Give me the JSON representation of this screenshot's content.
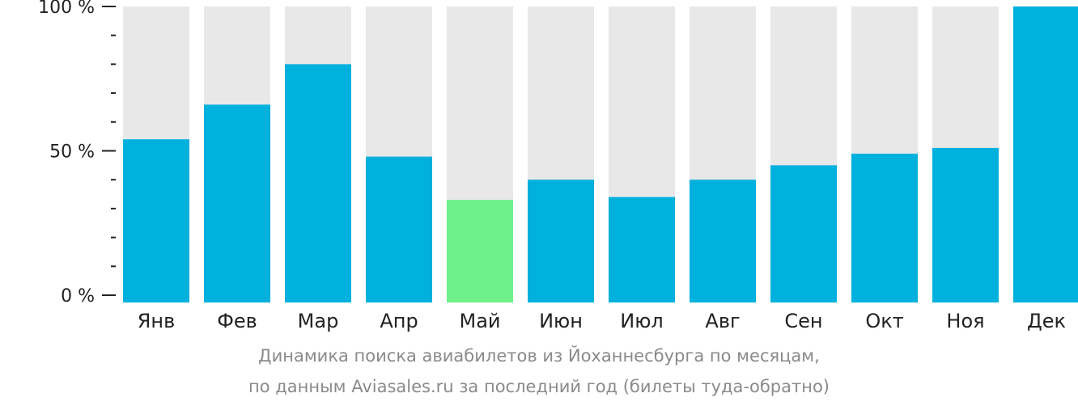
{
  "chart_data": {
    "type": "bar",
    "categories": [
      "Янв",
      "Фев",
      "Мар",
      "Апр",
      "Май",
      "Июн",
      "Июл",
      "Авг",
      "Сен",
      "Окт",
      "Ноя",
      "Дек"
    ],
    "values": [
      54,
      66,
      80,
      48,
      33,
      40,
      34,
      40,
      45,
      49,
      51,
      100
    ],
    "max_value": 100,
    "ylim": [
      0,
      100
    ],
    "yticks": [
      {
        "value": 0,
        "label": "0 %"
      },
      {
        "value": 50,
        "label": "50 %"
      },
      {
        "value": 100,
        "label": "100 %"
      }
    ],
    "minor_tick_step": 10,
    "highlight_index": 4,
    "colors": {
      "bar": "#00b0dd",
      "highlight": "#6ef08a",
      "background_bar": "#e8e8e8",
      "axis": "#222222"
    },
    "caption": [
      "Динамика поиска авиабилетов из Йоханнесбурга по месяцам,",
      "по данным Aviasales.ru за последний год (билеты туда-обратно)"
    ]
  }
}
